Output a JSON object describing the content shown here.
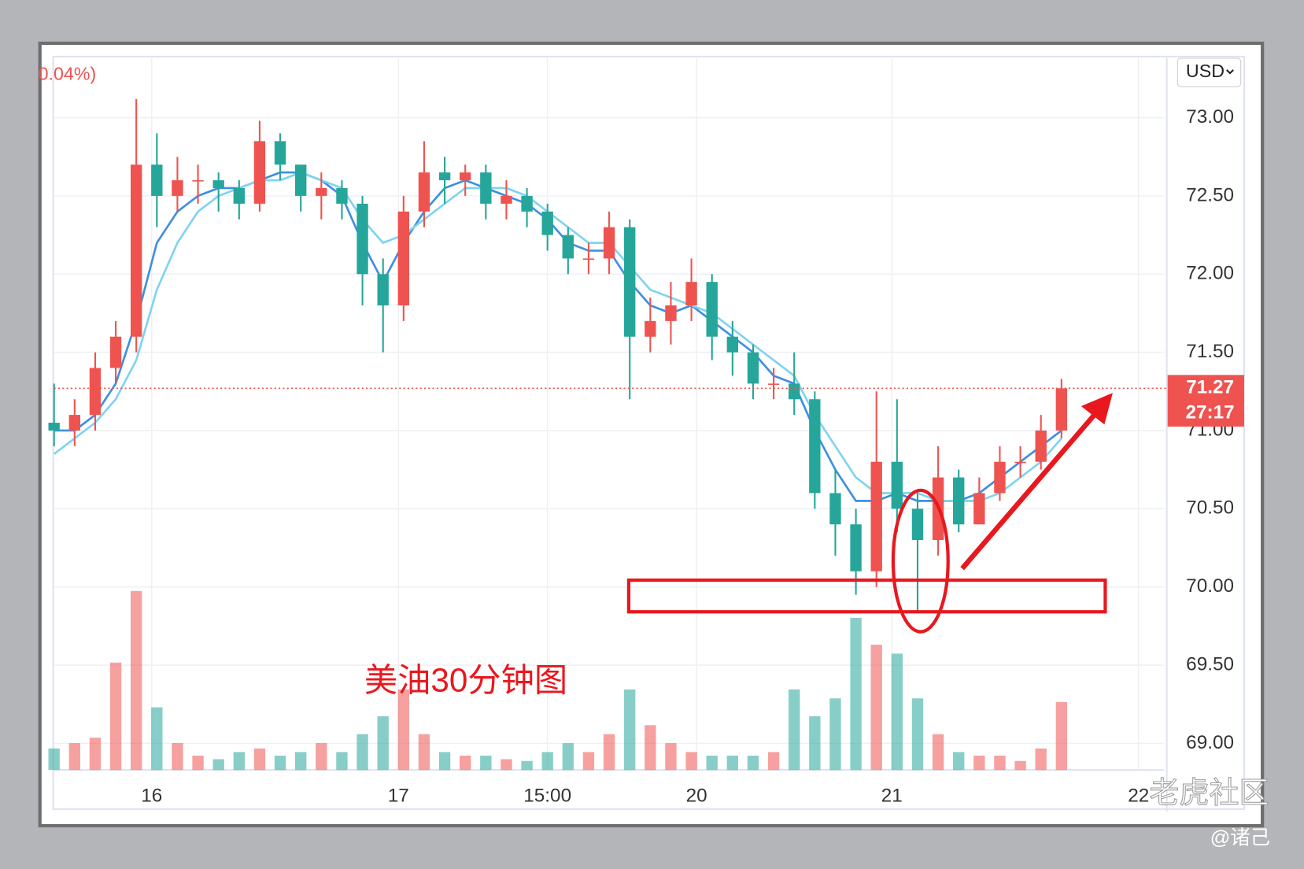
{
  "chart_data": {
    "type": "candlestick",
    "top_left_text": "0.04%)",
    "currency": "USD",
    "annotation": "美油30分钟图",
    "watermark": "老虎社区",
    "author": "@诸己",
    "up_color": "#ef5350",
    "down_color": "#26a69a",
    "x": [
      0,
      4,
      8,
      12,
      16,
      20,
      24,
      28,
      32,
      36,
      40,
      44,
      48,
      52,
      56,
      60,
      64,
      68,
      72,
      76,
      80,
      84,
      88,
      92,
      96,
      100,
      104,
      108,
      112,
      116,
      120,
      124,
      128,
      132,
      136,
      140,
      144,
      148,
      152,
      156,
      160,
      164,
      168,
      172,
      176,
      180,
      184,
      188,
      192,
      196
    ],
    "open": [
      71.05,
      71.0,
      71.1,
      71.4,
      71.6,
      72.7,
      72.5,
      72.6,
      72.6,
      72.55,
      72.45,
      72.85,
      72.7,
      72.5,
      72.55,
      72.45,
      72.0,
      71.8,
      72.4,
      72.65,
      72.6,
      72.65,
      72.45,
      72.5,
      72.4,
      72.25,
      72.1,
      72.1,
      72.3,
      71.6,
      71.7,
      71.8,
      71.95,
      71.6,
      71.5,
      71.3,
      71.3,
      71.2,
      70.6,
      70.4,
      70.1,
      70.8,
      70.5,
      70.3,
      70.7,
      70.4,
      70.6,
      70.8,
      70.8,
      71.0
    ],
    "high": [
      71.3,
      71.2,
      71.5,
      71.7,
      73.12,
      72.9,
      72.75,
      72.7,
      72.65,
      72.6,
      72.98,
      72.9,
      72.7,
      72.65,
      72.6,
      72.5,
      72.1,
      72.5,
      72.85,
      72.75,
      72.7,
      72.7,
      72.6,
      72.55,
      72.45,
      72.3,
      72.2,
      72.4,
      72.35,
      71.85,
      71.95,
      72.1,
      72.0,
      71.7,
      71.55,
      71.4,
      71.5,
      71.25,
      70.75,
      70.5,
      71.25,
      71.2,
      70.6,
      70.9,
      70.75,
      70.7,
      70.9,
      70.9,
      71.1,
      71.33
    ],
    "low": [
      70.9,
      70.9,
      71.0,
      71.3,
      71.5,
      72.3,
      72.4,
      72.45,
      72.4,
      72.35,
      72.4,
      72.6,
      72.4,
      72.35,
      72.35,
      71.8,
      71.5,
      71.7,
      72.3,
      72.45,
      72.5,
      72.35,
      72.35,
      72.3,
      72.15,
      72.0,
      72.0,
      72.0,
      71.2,
      71.5,
      71.55,
      71.7,
      71.45,
      71.35,
      71.2,
      71.2,
      71.1,
      70.5,
      70.2,
      69.95,
      70.0,
      70.35,
      69.85,
      70.2,
      70.35,
      70.4,
      70.55,
      70.7,
      70.75,
      70.95
    ],
    "close": [
      71.0,
      71.1,
      71.4,
      71.6,
      72.7,
      72.5,
      72.6,
      72.6,
      72.55,
      72.45,
      72.85,
      72.7,
      72.5,
      72.55,
      72.45,
      72.0,
      71.8,
      72.4,
      72.65,
      72.6,
      72.65,
      72.45,
      72.5,
      72.4,
      72.25,
      72.1,
      72.1,
      72.3,
      71.6,
      71.7,
      71.8,
      71.95,
      71.6,
      71.5,
      71.3,
      71.3,
      71.2,
      70.6,
      70.4,
      70.1,
      70.8,
      70.5,
      70.3,
      70.7,
      70.4,
      70.6,
      70.8,
      70.8,
      71.0,
      71.27
    ],
    "volume": [
      12,
      15,
      18,
      60,
      100,
      35,
      15,
      8,
      6,
      10,
      12,
      8,
      10,
      15,
      10,
      20,
      30,
      45,
      20,
      10,
      8,
      8,
      6,
      5,
      10,
      15,
      10,
      20,
      45,
      25,
      15,
      10,
      8,
      8,
      8,
      10,
      45,
      30,
      40,
      85,
      70,
      65,
      40,
      20,
      10,
      8,
      8,
      5,
      12,
      38
    ],
    "vlim": [
      0,
      100
    ],
    "ma_lines": [
      {
        "color": "#3d8fe0",
        "values": [
          71.0,
          71.0,
          71.1,
          71.3,
          71.7,
          72.2,
          72.4,
          72.5,
          72.55,
          72.55,
          72.6,
          72.65,
          72.65,
          72.6,
          72.5,
          72.2,
          71.95,
          72.2,
          72.4,
          72.55,
          72.6,
          72.55,
          72.5,
          72.45,
          72.35,
          72.2,
          72.15,
          72.15,
          71.95,
          71.8,
          71.75,
          71.8,
          71.7,
          71.6,
          71.5,
          71.35,
          71.3,
          71.0,
          70.75,
          70.55,
          70.55,
          70.6,
          70.55,
          70.55,
          70.55,
          70.6,
          70.7,
          70.8,
          70.9,
          71.0
        ]
      },
      {
        "color": "#7fd3f0",
        "values": [
          70.85,
          70.95,
          71.05,
          71.2,
          71.45,
          71.9,
          72.2,
          72.4,
          72.5,
          72.55,
          72.6,
          72.6,
          72.65,
          72.6,
          72.55,
          72.35,
          72.2,
          72.25,
          72.35,
          72.45,
          72.55,
          72.55,
          72.55,
          72.5,
          72.4,
          72.3,
          72.2,
          72.2,
          72.05,
          71.9,
          71.85,
          71.8,
          71.75,
          71.65,
          71.55,
          71.45,
          71.35,
          71.1,
          70.9,
          70.7,
          70.6,
          70.6,
          70.6,
          70.55,
          70.55,
          70.55,
          70.6,
          70.7,
          70.8,
          70.95
        ]
      }
    ],
    "last_price": 71.27,
    "countdown": "27:17",
    "xlim": [
      0,
      216
    ],
    "xticks": [
      {
        "value": 19,
        "label": "16"
      },
      {
        "value": 67,
        "label": "17"
      },
      {
        "value": 96,
        "label": "15:00"
      },
      {
        "value": 125,
        "label": "20"
      },
      {
        "value": 163,
        "label": "21"
      },
      {
        "value": 211,
        "label": "22"
      }
    ],
    "ylim": [
      68.83,
      73.38
    ],
    "yticks": [
      {
        "value": 69,
        "label": "69.00"
      },
      {
        "value": 69.5,
        "label": "69.50"
      },
      {
        "value": 70,
        "label": "70.00"
      },
      {
        "value": 70.5,
        "label": "70.50"
      },
      {
        "value": 71,
        "label": "71.00"
      },
      {
        "value": 71.5,
        "label": "71.50"
      },
      {
        "value": 72,
        "label": "72.00"
      },
      {
        "value": 72.5,
        "label": "72.50"
      },
      {
        "value": 73,
        "label": "73.00"
      }
    ],
    "grid": true
  }
}
